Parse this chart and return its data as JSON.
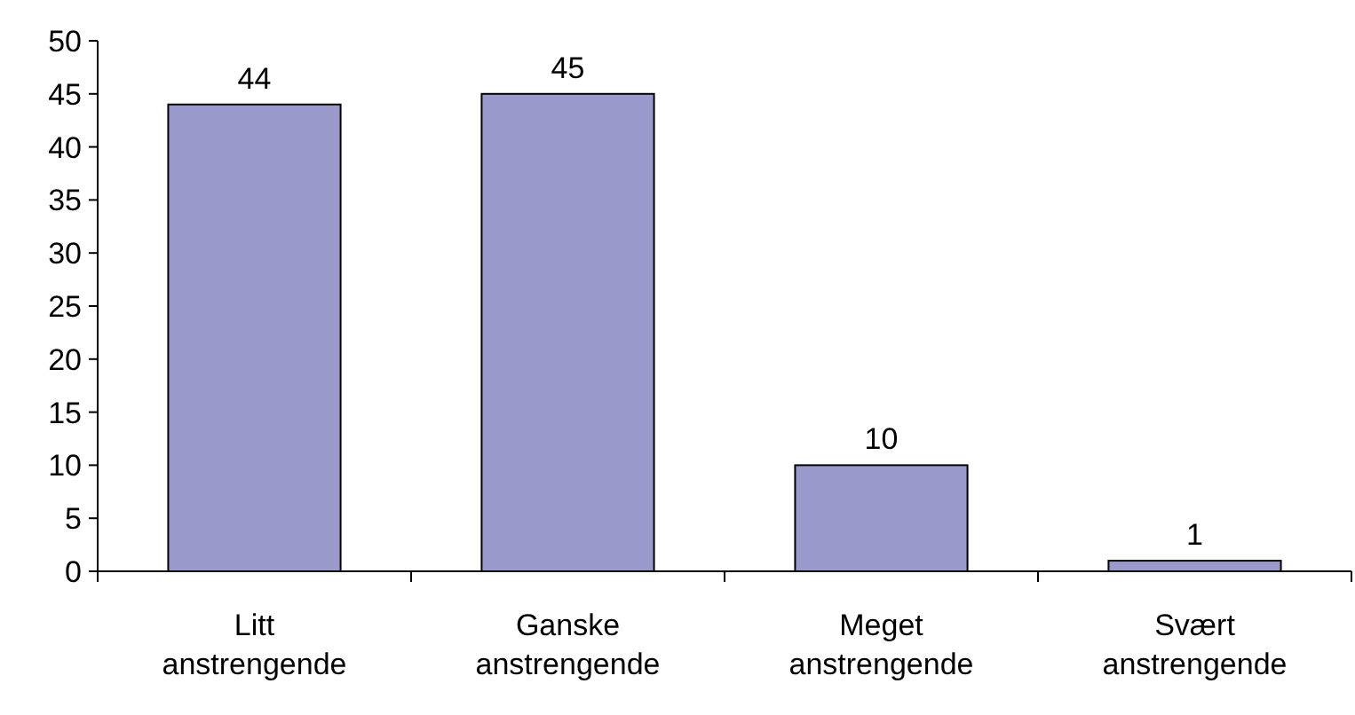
{
  "chart_data": {
    "type": "bar",
    "categories": [
      "Litt anstrengende",
      "Ganske anstrengende",
      "Meget anstrengende",
      "Svært anstrengende"
    ],
    "values": [
      44,
      45,
      10,
      1
    ],
    "color": "#9999cc",
    "ylim": [
      0,
      50
    ],
    "yticks": [
      0,
      5,
      10,
      15,
      20,
      25,
      30,
      35,
      40,
      45,
      50
    ],
    "data_labels": true
  }
}
